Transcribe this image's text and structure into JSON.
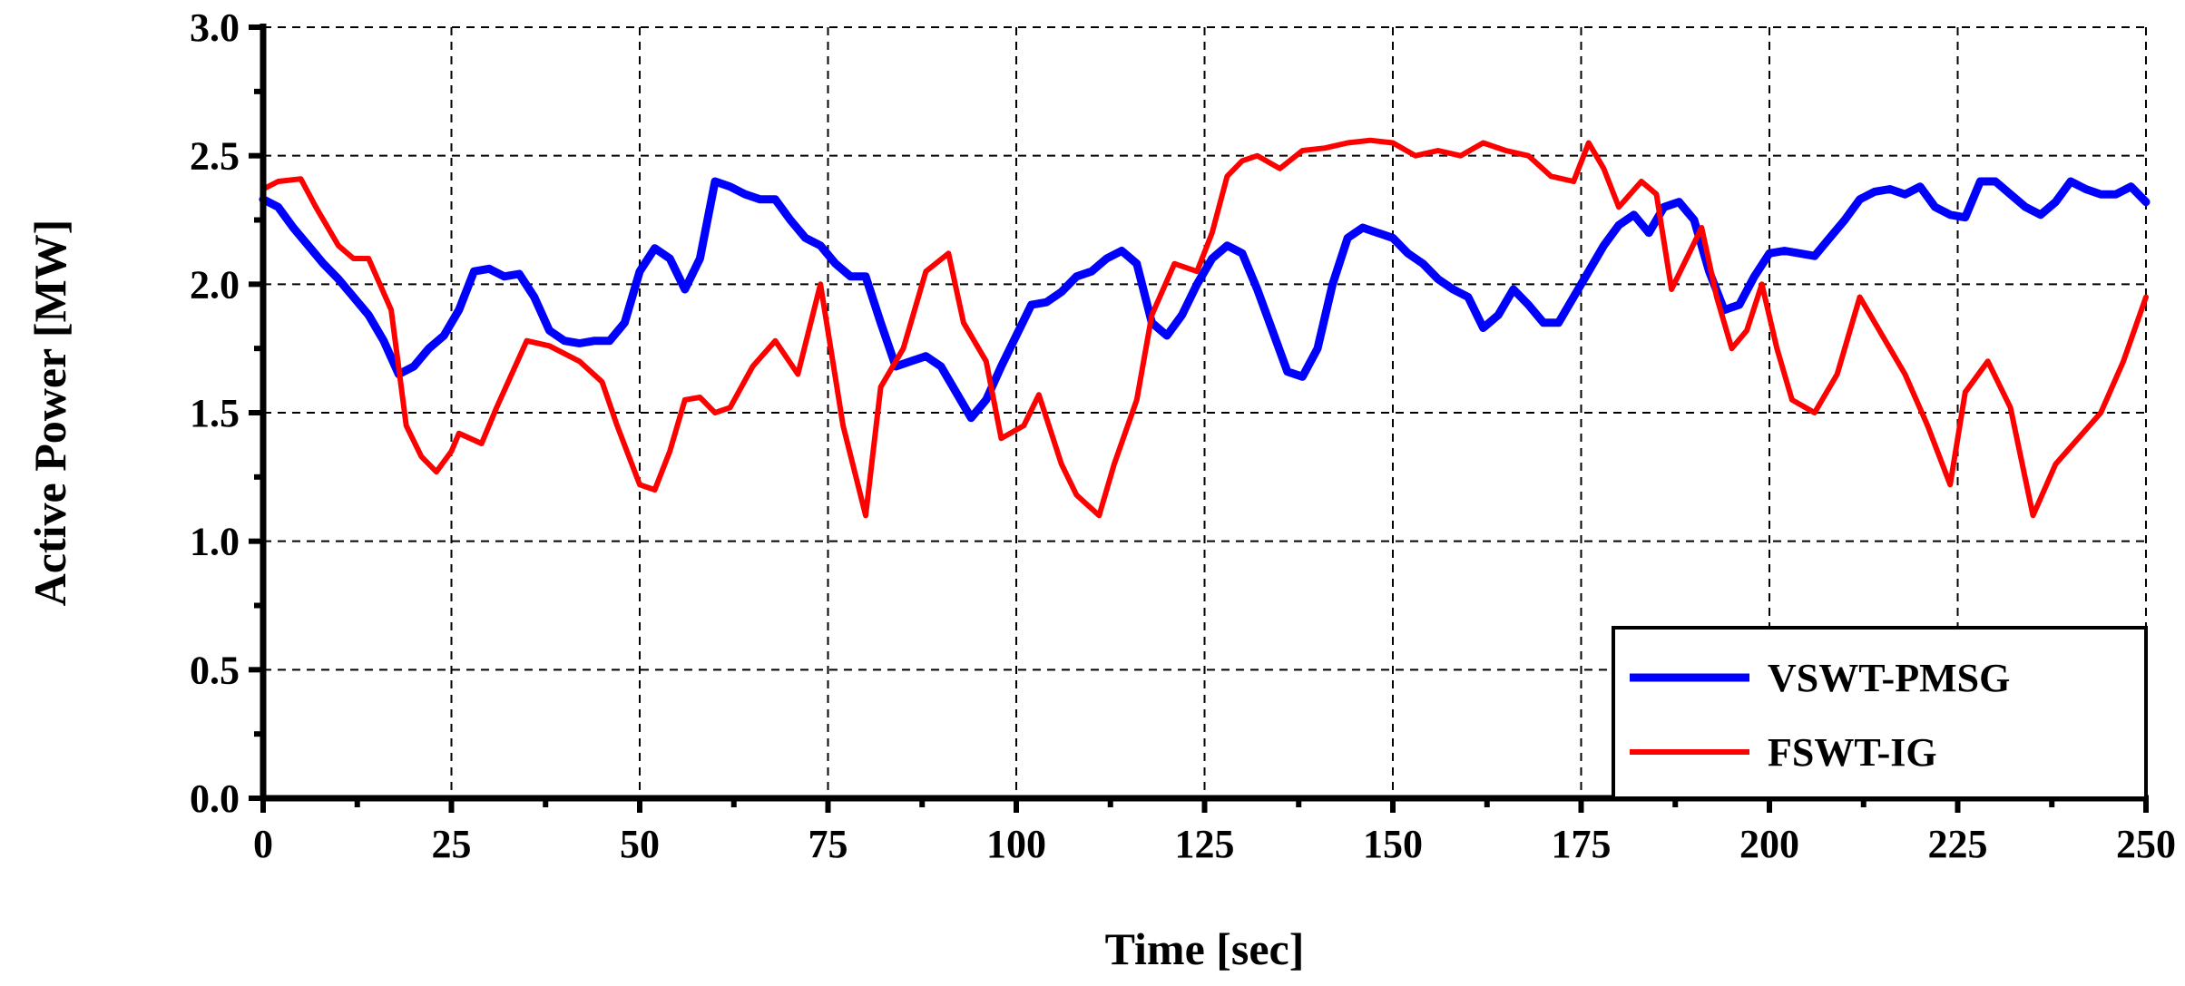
{
  "chart_data": {
    "type": "line",
    "title": "",
    "xlabel": "Time [sec]",
    "ylabel": "Active Power [MW]",
    "xlim": [
      0,
      250
    ],
    "ylim": [
      0,
      3
    ],
    "xticks": [
      0,
      25,
      50,
      75,
      100,
      125,
      150,
      175,
      200,
      225,
      250
    ],
    "yticks": [
      0,
      0.5,
      1,
      1.5,
      2,
      2.5,
      3
    ],
    "xtick_labels": [
      "0",
      "25",
      "50",
      "75",
      "100",
      "125",
      "150",
      "175",
      "200",
      "225",
      "250"
    ],
    "ytick_labels": [
      "0.0",
      "0.5",
      "1.0",
      "1.5",
      "2.0",
      "2.5",
      "3.0"
    ],
    "grid": true,
    "grid_style": "dashed",
    "legend_position": "bottom-right",
    "series": [
      {
        "name": "VSWT-PMSG",
        "color": "#0000ff",
        "x": [
          0,
          2,
          4,
          6,
          8,
          10,
          12,
          14,
          16,
          18,
          20,
          22,
          24,
          26,
          28,
          30,
          32,
          34,
          36,
          38,
          40,
          42,
          44,
          46,
          48,
          50,
          52,
          54,
          56,
          58,
          60,
          62,
          64,
          66,
          68,
          70,
          72,
          74,
          76,
          78,
          80,
          82,
          84,
          86,
          88,
          90,
          92,
          94,
          96,
          98,
          100,
          102,
          104,
          106,
          108,
          110,
          112,
          114,
          116,
          118,
          120,
          122,
          124,
          126,
          128,
          130,
          132,
          134,
          136,
          138,
          140,
          142,
          144,
          146,
          148,
          150,
          152,
          154,
          156,
          158,
          160,
          162,
          164,
          166,
          168,
          170,
          172,
          174,
          176,
          178,
          180,
          182,
          184,
          186,
          188,
          190,
          192,
          194,
          196,
          198,
          200,
          202,
          204,
          206,
          208,
          210,
          212,
          214,
          216,
          218,
          220,
          222,
          224,
          226,
          228,
          230,
          232,
          234,
          236,
          238,
          240,
          242,
          244,
          246,
          248,
          250
        ],
        "y": [
          2.33,
          2.3,
          2.22,
          2.15,
          2.08,
          2.02,
          1.95,
          1.88,
          1.78,
          1.65,
          1.68,
          1.75,
          1.8,
          1.9,
          2.05,
          2.06,
          2.03,
          2.04,
          1.95,
          1.82,
          1.78,
          1.77,
          1.78,
          1.78,
          1.85,
          2.05,
          2.14,
          2.1,
          1.98,
          2.1,
          2.4,
          2.38,
          2.35,
          2.33,
          2.33,
          2.25,
          2.18,
          2.15,
          2.08,
          2.03,
          2.03,
          1.85,
          1.68,
          1.7,
          1.72,
          1.68,
          1.58,
          1.48,
          1.55,
          1.68,
          1.8,
          1.92,
          1.93,
          1.97,
          2.03,
          2.05,
          2.1,
          2.13,
          2.08,
          1.85,
          1.8,
          1.88,
          2.0,
          2.1,
          2.15,
          2.12,
          1.98,
          1.82,
          1.66,
          1.64,
          1.75,
          2.0,
          2.18,
          2.22,
          2.2,
          2.18,
          2.12,
          2.08,
          2.02,
          1.98,
          1.95,
          1.83,
          1.88,
          1.98,
          1.92,
          1.85,
          1.85,
          1.95,
          2.05,
          2.15,
          2.23,
          2.27,
          2.2,
          2.3,
          2.32,
          2.25,
          2.05,
          1.9,
          1.92,
          2.03,
          2.12,
          2.13,
          2.12,
          2.11,
          2.18,
          2.25,
          2.33,
          2.36,
          2.37,
          2.35,
          2.38,
          2.3,
          2.27,
          2.26,
          2.4,
          2.4,
          2.35,
          2.3,
          2.27,
          2.32,
          2.4,
          2.37,
          2.35,
          2.35,
          2.38,
          2.32
        ]
      },
      {
        "name": "FSWT-IG",
        "color": "#ff0000",
        "x": [
          0,
          2,
          5,
          7,
          10,
          12,
          14,
          17,
          19,
          21,
          23,
          25,
          26,
          29,
          31,
          33,
          35,
          38,
          42,
          45,
          47,
          50,
          52,
          54,
          56,
          58,
          60,
          62,
          65,
          68,
          71,
          74,
          77,
          80,
          82,
          85,
          88,
          91,
          93,
          96,
          98,
          101,
          103,
          106,
          108,
          111,
          113,
          116,
          118,
          121,
          124,
          126,
          128,
          130,
          132,
          135,
          138,
          141,
          144,
          147,
          150,
          153,
          156,
          159,
          162,
          165,
          168,
          171,
          174,
          176,
          178,
          180,
          183,
          185,
          187,
          189,
          191,
          193,
          195,
          197,
          199,
          201,
          203,
          206,
          209,
          212,
          215,
          218,
          221,
          224,
          226,
          229,
          232,
          235,
          238,
          241,
          244,
          247,
          250
        ],
        "y": [
          2.37,
          2.4,
          2.41,
          2.3,
          2.15,
          2.1,
          2.1,
          1.9,
          1.45,
          1.33,
          1.27,
          1.35,
          1.42,
          1.38,
          1.52,
          1.65,
          1.78,
          1.76,
          1.7,
          1.62,
          1.45,
          1.22,
          1.2,
          1.35,
          1.55,
          1.56,
          1.5,
          1.52,
          1.68,
          1.78,
          1.65,
          2.0,
          1.45,
          1.1,
          1.6,
          1.75,
          2.05,
          2.12,
          1.85,
          1.7,
          1.4,
          1.45,
          1.57,
          1.3,
          1.18,
          1.1,
          1.3,
          1.55,
          1.88,
          2.08,
          2.05,
          2.2,
          2.42,
          2.48,
          2.5,
          2.45,
          2.52,
          2.53,
          2.55,
          2.56,
          2.55,
          2.5,
          2.52,
          2.5,
          2.55,
          2.52,
          2.5,
          2.42,
          2.4,
          2.55,
          2.45,
          2.3,
          2.4,
          2.35,
          1.98,
          2.1,
          2.22,
          1.95,
          1.75,
          1.82,
          2.0,
          1.75,
          1.55,
          1.5,
          1.65,
          1.95,
          1.8,
          1.65,
          1.45,
          1.22,
          1.58,
          1.7,
          1.52,
          1.1,
          1.3,
          1.4,
          1.5,
          1.7,
          1.95
        ]
      }
    ]
  }
}
